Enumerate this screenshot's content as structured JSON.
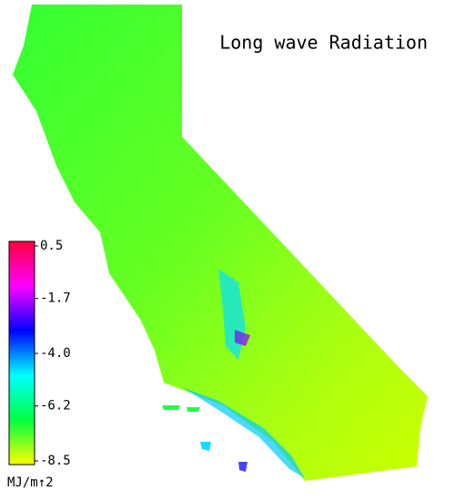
{
  "title": "Long wave Radiation",
  "legend": {
    "unit": "MJ/m↑2",
    "range": [
      -8.5,
      0.5
    ],
    "ticks": [
      0.5,
      -1.7,
      {
        "value": -4,
        "label": "-4.0"
      },
      -6.2,
      -8.5
    ],
    "colors": [
      "#ff0040",
      "#ff00ff",
      "#0000ff",
      "#00ffff",
      "#00ff40",
      "#ffff00"
    ]
  }
}
